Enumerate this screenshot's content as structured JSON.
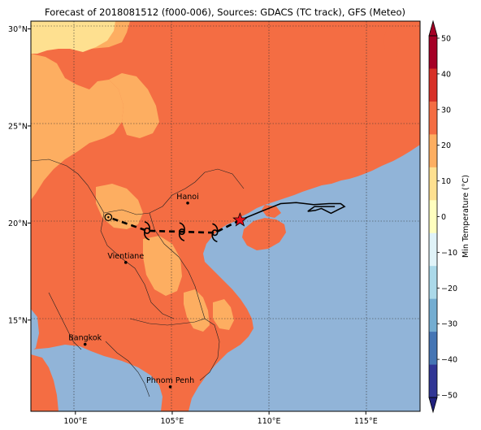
{
  "title": "Forecast of 2018081512 (f000-006), Sources: GDACS (TC track), GFS (Meteo)",
  "map": {
    "lon_range": [
      97.7,
      117.8
    ],
    "lat_range": [
      10.3,
      30.4
    ],
    "x_ticks": [
      {
        "lon": 100,
        "label": "100°E"
      },
      {
        "lon": 105,
        "label": "105°E"
      },
      {
        "lon": 110,
        "label": "110°E"
      },
      {
        "lon": 115,
        "label": "115°E"
      }
    ],
    "y_ticks": [
      {
        "lat": 15,
        "label": "15°N"
      },
      {
        "lat": 20,
        "label": "20°N"
      },
      {
        "lat": 25,
        "label": "25°N"
      },
      {
        "lat": 30,
        "label": "30°N"
      }
    ],
    "gridlines": true,
    "colors": {
      "sea": "#91b4d8",
      "warm": "#f46d43",
      "mild": "#fdae61",
      "cool": "#fee090"
    },
    "cities": [
      {
        "name": "Hanoi",
        "lon": 105.8,
        "lat": 21.03
      },
      {
        "name": "Vientiane",
        "lon": 102.6,
        "lat": 17.97
      },
      {
        "name": "Bangkok",
        "lon": 100.5,
        "lat": 13.75
      },
      {
        "name": "Phnom Penh",
        "lon": 104.9,
        "lat": 11.56
      }
    ]
  },
  "track": {
    "forecast": [
      {
        "lon": 108.5,
        "lat": 20.15
      },
      {
        "lon": 107.2,
        "lat": 19.5
      },
      {
        "lon": 105.5,
        "lat": 19.55
      },
      {
        "lon": 103.7,
        "lat": 19.6
      },
      {
        "lon": 101.7,
        "lat": 20.3
      }
    ],
    "current": {
      "lon": 108.5,
      "lat": 20.15
    },
    "storm_symbols": [
      {
        "lon": 107.2,
        "lat": 19.5
      },
      {
        "lon": 105.5,
        "lat": 19.55
      },
      {
        "lon": 103.7,
        "lat": 19.6
      }
    ],
    "end_marker": {
      "lon": 101.7,
      "lat": 20.3
    },
    "past": [
      {
        "lon": 108.5,
        "lat": 20.15
      },
      {
        "lon": 109.6,
        "lat": 20.6
      },
      {
        "lon": 110.6,
        "lat": 21.0
      },
      {
        "lon": 111.4,
        "lat": 21.05
      },
      {
        "lon": 112.3,
        "lat": 20.95
      },
      {
        "lon": 113.1,
        "lat": 21.0
      },
      {
        "lon": 113.7,
        "lat": 21.0
      },
      {
        "lon": 113.9,
        "lat": 20.85
      },
      {
        "lon": 113.6,
        "lat": 20.7
      },
      {
        "lon": 113.2,
        "lat": 20.5
      },
      {
        "lon": 112.7,
        "lat": 20.75
      },
      {
        "lon": 112.4,
        "lat": 20.65
      },
      {
        "lon": 112.0,
        "lat": 20.6
      },
      {
        "lon": 112.35,
        "lat": 20.85
      },
      {
        "lon": 113.4,
        "lat": 20.85
      }
    ]
  },
  "colorbar": {
    "label": "Min Temperature (°C)",
    "ticks": [
      "50",
      "40",
      "30",
      "20",
      "10",
      "0",
      "−10",
      "−20",
      "−30",
      "−40",
      "−50"
    ],
    "band_colors": [
      "#a50026",
      "#d73027",
      "#f46d43",
      "#fdae61",
      "#fee090",
      "#ffffbf",
      "#e0f3f8",
      "#abd9e9",
      "#74add1",
      "#4575b4",
      "#313695"
    ],
    "over_color": "#a50026",
    "under_color": "#20207e"
  }
}
